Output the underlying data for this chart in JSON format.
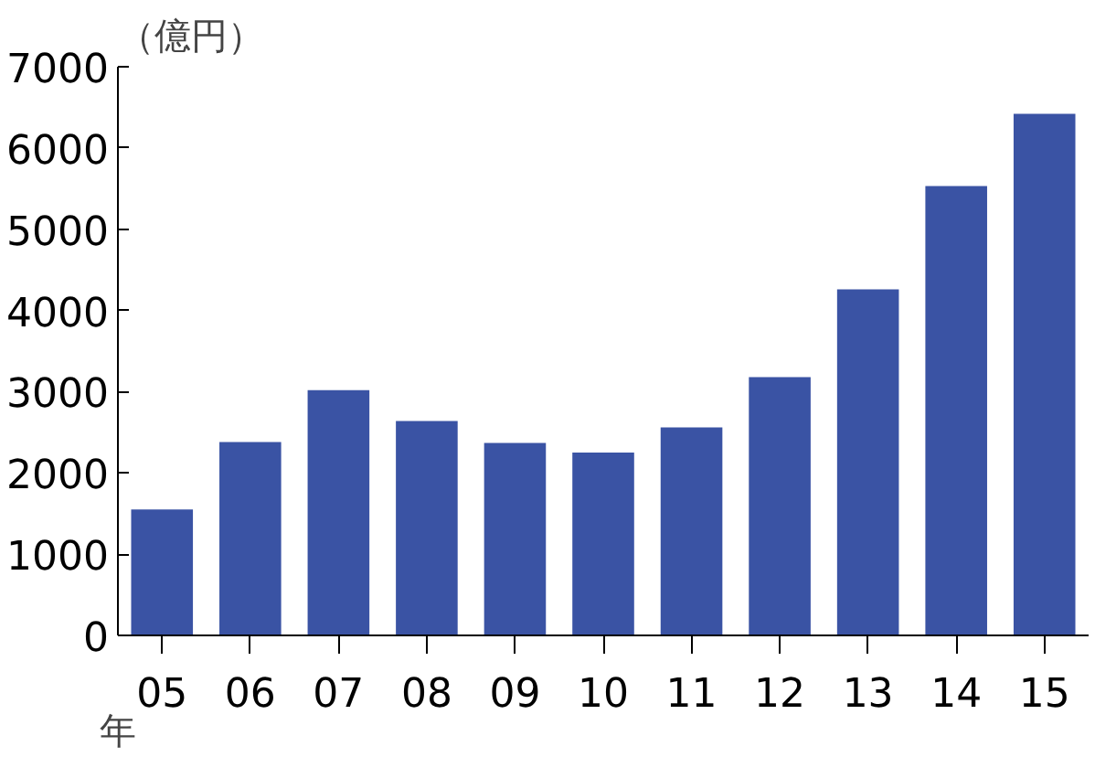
{
  "chart_data": {
    "type": "bar",
    "xlabel": "年",
    "ylabel": "（億円）",
    "categories": [
      "05",
      "06",
      "07",
      "08",
      "09",
      "10",
      "11",
      "12",
      "13",
      "14",
      "15"
    ],
    "values": [
      1550,
      2380,
      3020,
      2640,
      2370,
      2250,
      2560,
      3180,
      4260,
      5530,
      6420
    ],
    "color": "#3a53a4",
    "ylim": [
      0,
      7000
    ],
    "yticks": [
      0,
      1000,
      2000,
      3000,
      4000,
      5000,
      6000,
      7000
    ],
    "grid": false
  }
}
